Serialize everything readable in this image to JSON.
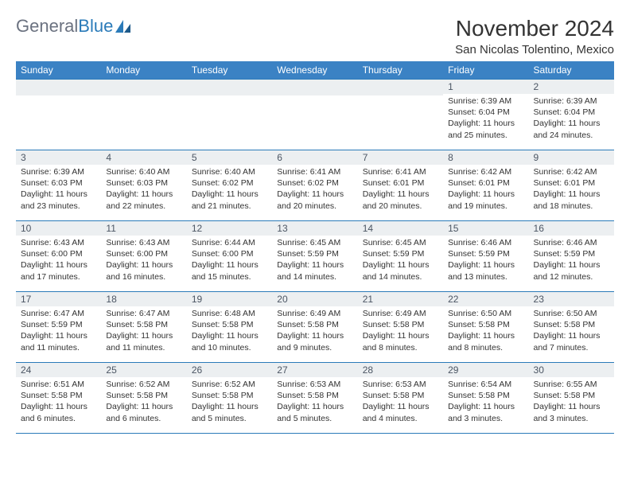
{
  "logo": {
    "text1": "General",
    "text2": "Blue"
  },
  "title": "November 2024",
  "location": "San Nicolas Tolentino, Mexico",
  "colors": {
    "header_bg": "#3b82c4",
    "header_text": "#ffffff",
    "border": "#2b7bb9",
    "daynum_bg": "#eceff1",
    "daynum_text": "#4b5563",
    "body_text": "#333333",
    "logo_gray": "#6b7280",
    "logo_blue": "#2b7bb9"
  },
  "weekdays": [
    "Sunday",
    "Monday",
    "Tuesday",
    "Wednesday",
    "Thursday",
    "Friday",
    "Saturday"
  ],
  "weeks": [
    [
      {
        "n": "",
        "sr": "",
        "ss": "",
        "dl": ""
      },
      {
        "n": "",
        "sr": "",
        "ss": "",
        "dl": ""
      },
      {
        "n": "",
        "sr": "",
        "ss": "",
        "dl": ""
      },
      {
        "n": "",
        "sr": "",
        "ss": "",
        "dl": ""
      },
      {
        "n": "",
        "sr": "",
        "ss": "",
        "dl": ""
      },
      {
        "n": "1",
        "sr": "Sunrise: 6:39 AM",
        "ss": "Sunset: 6:04 PM",
        "dl": "Daylight: 11 hours and 25 minutes."
      },
      {
        "n": "2",
        "sr": "Sunrise: 6:39 AM",
        "ss": "Sunset: 6:04 PM",
        "dl": "Daylight: 11 hours and 24 minutes."
      }
    ],
    [
      {
        "n": "3",
        "sr": "Sunrise: 6:39 AM",
        "ss": "Sunset: 6:03 PM",
        "dl": "Daylight: 11 hours and 23 minutes."
      },
      {
        "n": "4",
        "sr": "Sunrise: 6:40 AM",
        "ss": "Sunset: 6:03 PM",
        "dl": "Daylight: 11 hours and 22 minutes."
      },
      {
        "n": "5",
        "sr": "Sunrise: 6:40 AM",
        "ss": "Sunset: 6:02 PM",
        "dl": "Daylight: 11 hours and 21 minutes."
      },
      {
        "n": "6",
        "sr": "Sunrise: 6:41 AM",
        "ss": "Sunset: 6:02 PM",
        "dl": "Daylight: 11 hours and 20 minutes."
      },
      {
        "n": "7",
        "sr": "Sunrise: 6:41 AM",
        "ss": "Sunset: 6:01 PM",
        "dl": "Daylight: 11 hours and 20 minutes."
      },
      {
        "n": "8",
        "sr": "Sunrise: 6:42 AM",
        "ss": "Sunset: 6:01 PM",
        "dl": "Daylight: 11 hours and 19 minutes."
      },
      {
        "n": "9",
        "sr": "Sunrise: 6:42 AM",
        "ss": "Sunset: 6:01 PM",
        "dl": "Daylight: 11 hours and 18 minutes."
      }
    ],
    [
      {
        "n": "10",
        "sr": "Sunrise: 6:43 AM",
        "ss": "Sunset: 6:00 PM",
        "dl": "Daylight: 11 hours and 17 minutes."
      },
      {
        "n": "11",
        "sr": "Sunrise: 6:43 AM",
        "ss": "Sunset: 6:00 PM",
        "dl": "Daylight: 11 hours and 16 minutes."
      },
      {
        "n": "12",
        "sr": "Sunrise: 6:44 AM",
        "ss": "Sunset: 6:00 PM",
        "dl": "Daylight: 11 hours and 15 minutes."
      },
      {
        "n": "13",
        "sr": "Sunrise: 6:45 AM",
        "ss": "Sunset: 5:59 PM",
        "dl": "Daylight: 11 hours and 14 minutes."
      },
      {
        "n": "14",
        "sr": "Sunrise: 6:45 AM",
        "ss": "Sunset: 5:59 PM",
        "dl": "Daylight: 11 hours and 14 minutes."
      },
      {
        "n": "15",
        "sr": "Sunrise: 6:46 AM",
        "ss": "Sunset: 5:59 PM",
        "dl": "Daylight: 11 hours and 13 minutes."
      },
      {
        "n": "16",
        "sr": "Sunrise: 6:46 AM",
        "ss": "Sunset: 5:59 PM",
        "dl": "Daylight: 11 hours and 12 minutes."
      }
    ],
    [
      {
        "n": "17",
        "sr": "Sunrise: 6:47 AM",
        "ss": "Sunset: 5:59 PM",
        "dl": "Daylight: 11 hours and 11 minutes."
      },
      {
        "n": "18",
        "sr": "Sunrise: 6:47 AM",
        "ss": "Sunset: 5:58 PM",
        "dl": "Daylight: 11 hours and 11 minutes."
      },
      {
        "n": "19",
        "sr": "Sunrise: 6:48 AM",
        "ss": "Sunset: 5:58 PM",
        "dl": "Daylight: 11 hours and 10 minutes."
      },
      {
        "n": "20",
        "sr": "Sunrise: 6:49 AM",
        "ss": "Sunset: 5:58 PM",
        "dl": "Daylight: 11 hours and 9 minutes."
      },
      {
        "n": "21",
        "sr": "Sunrise: 6:49 AM",
        "ss": "Sunset: 5:58 PM",
        "dl": "Daylight: 11 hours and 8 minutes."
      },
      {
        "n": "22",
        "sr": "Sunrise: 6:50 AM",
        "ss": "Sunset: 5:58 PM",
        "dl": "Daylight: 11 hours and 8 minutes."
      },
      {
        "n": "23",
        "sr": "Sunrise: 6:50 AM",
        "ss": "Sunset: 5:58 PM",
        "dl": "Daylight: 11 hours and 7 minutes."
      }
    ],
    [
      {
        "n": "24",
        "sr": "Sunrise: 6:51 AM",
        "ss": "Sunset: 5:58 PM",
        "dl": "Daylight: 11 hours and 6 minutes."
      },
      {
        "n": "25",
        "sr": "Sunrise: 6:52 AM",
        "ss": "Sunset: 5:58 PM",
        "dl": "Daylight: 11 hours and 6 minutes."
      },
      {
        "n": "26",
        "sr": "Sunrise: 6:52 AM",
        "ss": "Sunset: 5:58 PM",
        "dl": "Daylight: 11 hours and 5 minutes."
      },
      {
        "n": "27",
        "sr": "Sunrise: 6:53 AM",
        "ss": "Sunset: 5:58 PM",
        "dl": "Daylight: 11 hours and 5 minutes."
      },
      {
        "n": "28",
        "sr": "Sunrise: 6:53 AM",
        "ss": "Sunset: 5:58 PM",
        "dl": "Daylight: 11 hours and 4 minutes."
      },
      {
        "n": "29",
        "sr": "Sunrise: 6:54 AM",
        "ss": "Sunset: 5:58 PM",
        "dl": "Daylight: 11 hours and 3 minutes."
      },
      {
        "n": "30",
        "sr": "Sunrise: 6:55 AM",
        "ss": "Sunset: 5:58 PM",
        "dl": "Daylight: 11 hours and 3 minutes."
      }
    ]
  ]
}
